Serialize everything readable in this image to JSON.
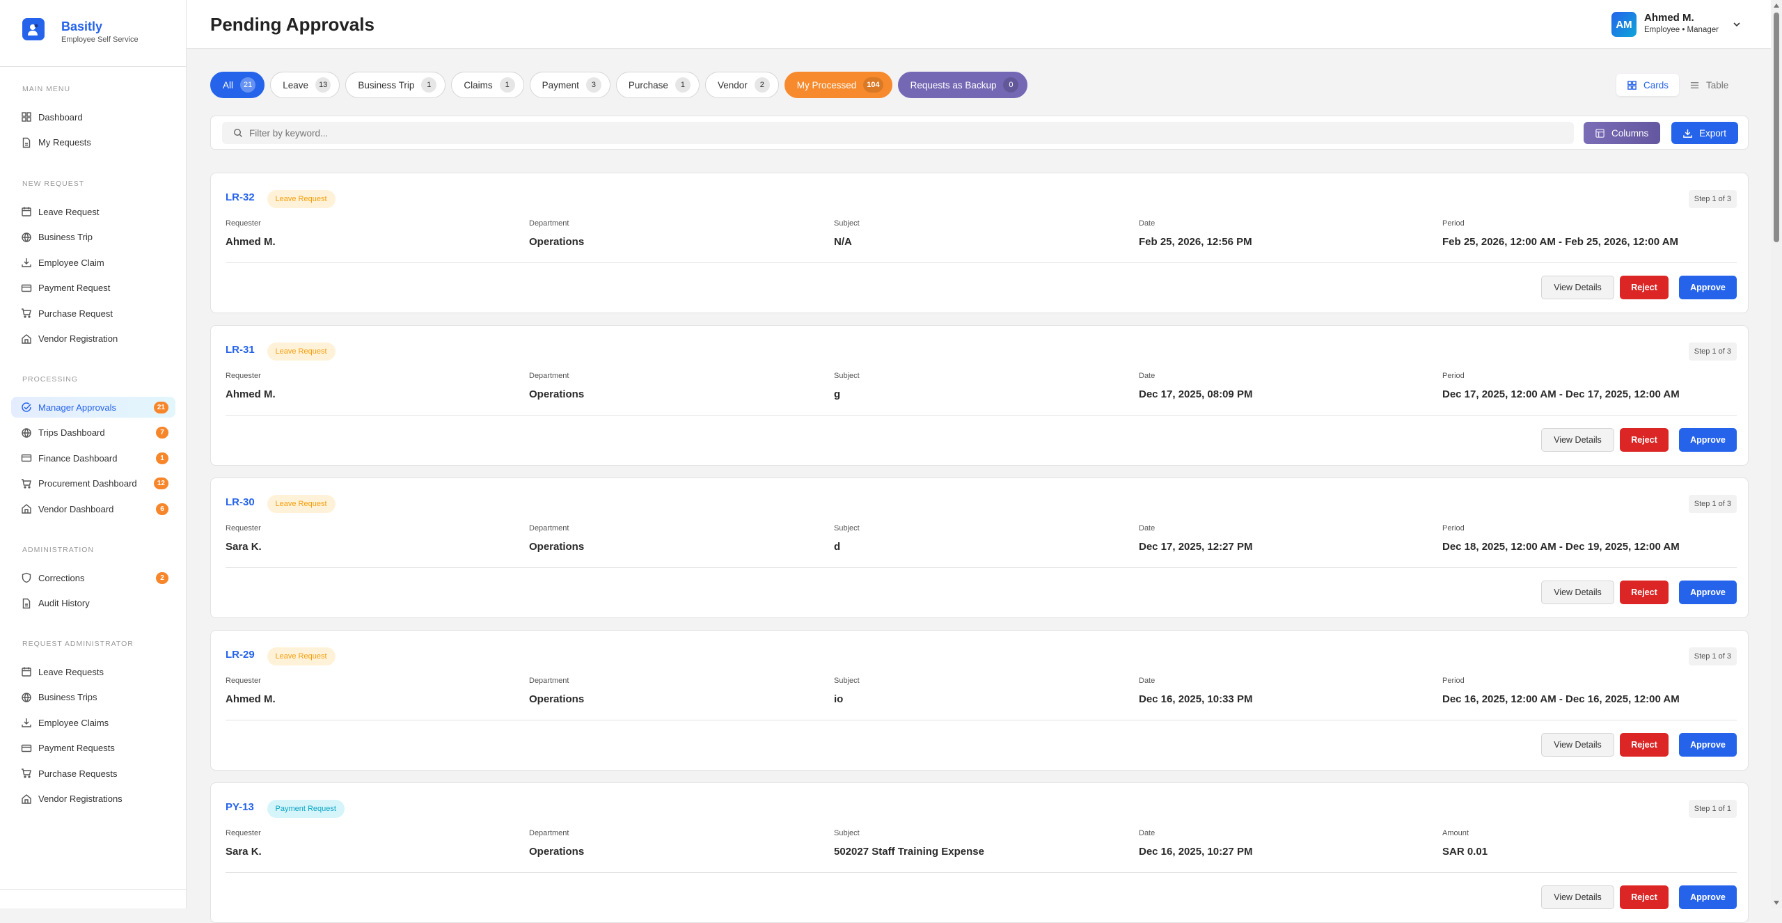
{
  "brand": {
    "title": "Basitly",
    "subtitle": "Employee Self Service"
  },
  "sidebar": {
    "sections": [
      {
        "label": "MAIN MENU",
        "items": [
          {
            "label": "Dashboard",
            "icon": "grid"
          },
          {
            "label": "My Requests",
            "icon": "doc"
          }
        ]
      },
      {
        "label": "NEW REQUEST",
        "items": [
          {
            "label": "Leave Request",
            "icon": "calendar"
          },
          {
            "label": "Business Trip",
            "icon": "globe"
          },
          {
            "label": "Employee Claim",
            "icon": "download"
          },
          {
            "label": "Payment Request",
            "icon": "card"
          },
          {
            "label": "Purchase Request",
            "icon": "cart"
          },
          {
            "label": "Vendor Registration",
            "icon": "store"
          }
        ]
      },
      {
        "label": "PROCESSING",
        "items": [
          {
            "label": "Manager Approvals",
            "icon": "check-circle",
            "badge": "21",
            "active": true
          },
          {
            "label": "Trips Dashboard",
            "icon": "globe",
            "badge": "7"
          },
          {
            "label": "Finance Dashboard",
            "icon": "card",
            "badge": "1"
          },
          {
            "label": "Procurement Dashboard",
            "icon": "cart",
            "badge": "12"
          },
          {
            "label": "Vendor Dashboard",
            "icon": "store",
            "badge": "6"
          }
        ]
      },
      {
        "label": "ADMINISTRATION",
        "items": [
          {
            "label": "Corrections",
            "icon": "shield",
            "badge": "2"
          },
          {
            "label": "Audit History",
            "icon": "doc"
          }
        ]
      },
      {
        "label": "REQUEST ADMINISTRATOR",
        "items": [
          {
            "label": "Leave Requests",
            "icon": "calendar"
          },
          {
            "label": "Business Trips",
            "icon": "globe"
          },
          {
            "label": "Employee Claims",
            "icon": "download"
          },
          {
            "label": "Payment Requests",
            "icon": "card"
          },
          {
            "label": "Purchase Requests",
            "icon": "cart"
          },
          {
            "label": "Vendor Registrations",
            "icon": "store"
          }
        ]
      }
    ]
  },
  "header": {
    "title": "Pending Approvals",
    "user": {
      "initials": "AM",
      "name": "Ahmed M.",
      "role": "Employee • Manager"
    }
  },
  "tabs": [
    {
      "label": "All",
      "count": "21",
      "style": "blue"
    },
    {
      "label": "Leave",
      "count": "13"
    },
    {
      "label": "Business Trip",
      "count": "1"
    },
    {
      "label": "Claims",
      "count": "1"
    },
    {
      "label": "Payment",
      "count": "3"
    },
    {
      "label": "Purchase",
      "count": "1"
    },
    {
      "label": "Vendor",
      "count": "2"
    },
    {
      "label": "My Processed",
      "count": "104",
      "style": "orange"
    },
    {
      "label": "Requests as Backup",
      "count": "0",
      "style": "purple"
    }
  ],
  "view": {
    "cards": "Cards",
    "table": "Table",
    "selected": "Cards"
  },
  "filter": {
    "placeholder": "Filter by keyword...",
    "value": "",
    "columns": "Columns",
    "export": "Export"
  },
  "colors": {
    "primary": "#2563eb",
    "badge": "#f78a2c",
    "reject": "#dc2626",
    "purple": "#7468b4"
  },
  "card_actions": {
    "view": "View Details",
    "reject": "Reject",
    "approve": "Approve"
  },
  "cards": [
    {
      "id": "LR-32",
      "type": "Leave Request",
      "kind": "leave",
      "step": "Step 1 of 3",
      "fields": [
        {
          "label": "Requester",
          "value": "Ahmed M."
        },
        {
          "label": "Department",
          "value": "Operations"
        },
        {
          "label": "Subject",
          "value": "N/A"
        },
        {
          "label": "Date",
          "value": "Feb 25, 2026, 12:56 PM"
        },
        {
          "label": "Period",
          "value": "Feb 25, 2026, 12:00 AM - Feb 25, 2026, 12:00 AM"
        }
      ]
    },
    {
      "id": "LR-31",
      "type": "Leave Request",
      "kind": "leave",
      "step": "Step 1 of 3",
      "fields": [
        {
          "label": "Requester",
          "value": "Ahmed M."
        },
        {
          "label": "Department",
          "value": "Operations"
        },
        {
          "label": "Subject",
          "value": "g"
        },
        {
          "label": "Date",
          "value": "Dec 17, 2025, 08:09 PM"
        },
        {
          "label": "Period",
          "value": "Dec 17, 2025, 12:00 AM - Dec 17, 2025, 12:00 AM"
        }
      ]
    },
    {
      "id": "LR-30",
      "type": "Leave Request",
      "kind": "leave",
      "step": "Step 1 of 3",
      "fields": [
        {
          "label": "Requester",
          "value": "Sara K."
        },
        {
          "label": "Department",
          "value": "Operations"
        },
        {
          "label": "Subject",
          "value": "d"
        },
        {
          "label": "Date",
          "value": "Dec 17, 2025, 12:27 PM"
        },
        {
          "label": "Period",
          "value": "Dec 18, 2025, 12:00 AM - Dec 19, 2025, 12:00 AM"
        }
      ]
    },
    {
      "id": "LR-29",
      "type": "Leave Request",
      "kind": "leave",
      "step": "Step 1 of 3",
      "fields": [
        {
          "label": "Requester",
          "value": "Ahmed M."
        },
        {
          "label": "Department",
          "value": "Operations"
        },
        {
          "label": "Subject",
          "value": "io"
        },
        {
          "label": "Date",
          "value": "Dec 16, 2025, 10:33 PM"
        },
        {
          "label": "Period",
          "value": "Dec 16, 2025, 12:00 AM - Dec 16, 2025, 12:00 AM"
        }
      ]
    },
    {
      "id": "PY-13",
      "type": "Payment Request",
      "kind": "pay",
      "step": "Step 1 of 1",
      "fields": [
        {
          "label": "Requester",
          "value": "Sara K."
        },
        {
          "label": "Department",
          "value": "Operations"
        },
        {
          "label": "Subject",
          "value": "502027 Staff Training Expense"
        },
        {
          "label": "Date",
          "value": "Dec 16, 2025, 10:27 PM"
        },
        {
          "label": "Amount",
          "value": "SAR 0.01"
        }
      ]
    }
  ]
}
